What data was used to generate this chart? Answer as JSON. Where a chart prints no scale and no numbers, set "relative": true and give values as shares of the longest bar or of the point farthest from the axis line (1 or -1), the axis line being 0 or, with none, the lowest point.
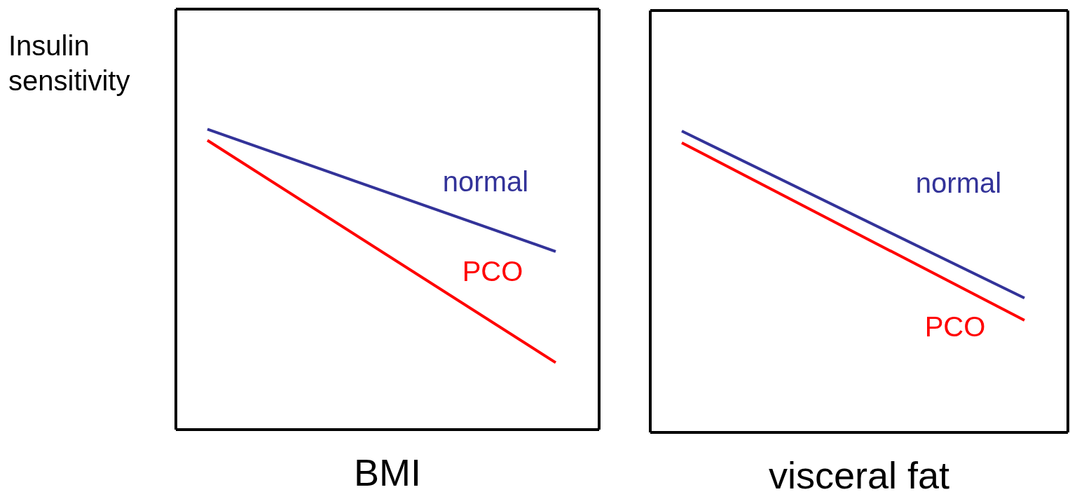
{
  "chart_data": [
    {
      "type": "line",
      "relative": true,
      "ylabel": "Insulin sensitivity",
      "xlabel": "BMI",
      "categories": [
        null,
        null
      ],
      "marker": "none",
      "legend": false,
      "series": [
        {
          "name": "normal",
          "color": "#333399",
          "values": [
            1,
            0.593
          ]
        },
        {
          "name": "PCO",
          "color": "#ff0000",
          "values": [
            0.963,
            0.223
          ]
        }
      ]
    },
    {
      "type": "line",
      "relative": true,
      "xlabel": "visceral fat",
      "categories": [
        null,
        null
      ],
      "marker": "none",
      "legend": false,
      "series": [
        {
          "name": "normal",
          "color": "#333399",
          "values": [
            1,
            0.446
          ]
        },
        {
          "name": "PCO",
          "color": "#ff0000",
          "values": [
            0.961,
            0.372
          ]
        }
      ]
    }
  ]
}
